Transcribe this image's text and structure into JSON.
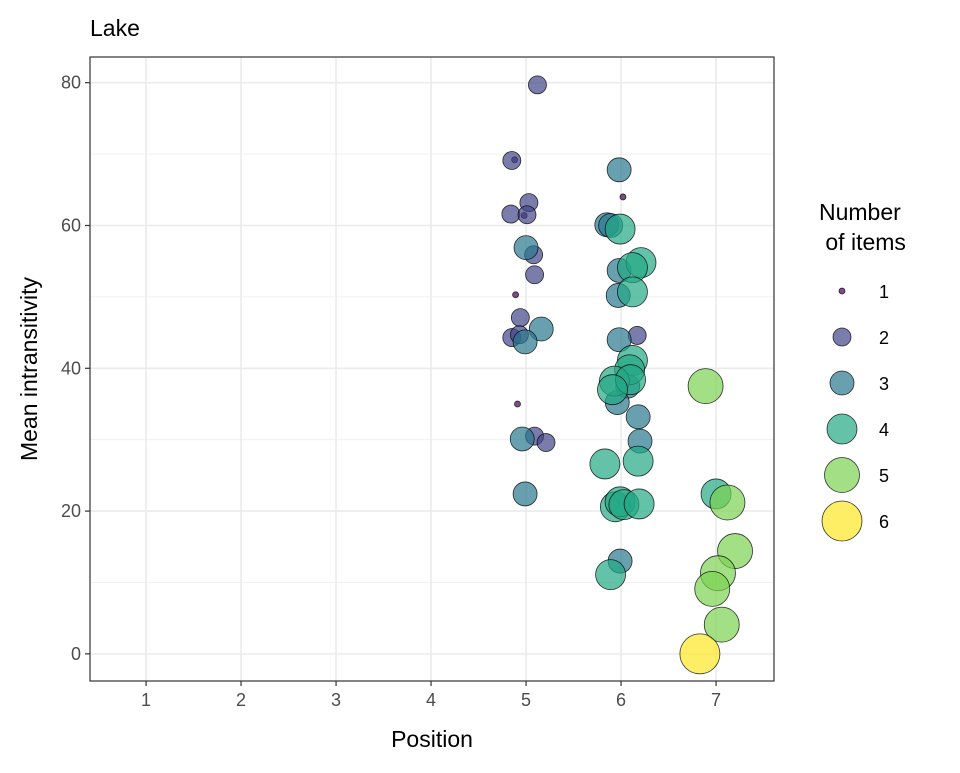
{
  "chart_data": {
    "type": "scatter",
    "title": "Lake",
    "xlabel": "Position",
    "ylabel": "Mean intransitivity",
    "xlim": [
      0.41,
      7.61
    ],
    "ylim": [
      -3.8,
      83.6
    ],
    "xticks": [
      1,
      2,
      3,
      4,
      5,
      6,
      7
    ],
    "yticks": [
      0,
      20,
      40,
      60,
      80
    ],
    "grid": true,
    "legend": {
      "title_line1": "Number",
      "title_line2": " of items",
      "placement": "right",
      "entries": [
        {
          "label": "1",
          "n": 1,
          "color": "#440154"
        },
        {
          "label": "2",
          "n": 2,
          "color": "#414487"
        },
        {
          "label": "3",
          "n": 3,
          "color": "#2A788E"
        },
        {
          "label": "4",
          "n": 4,
          "color": "#22A884"
        },
        {
          "label": "5",
          "n": 5,
          "color": "#7AD151"
        },
        {
          "label": "6",
          "n": 6,
          "color": "#FDE725"
        }
      ]
    },
    "points": [
      {
        "x": 5.12,
        "y": 79.7,
        "n": 2
      },
      {
        "x": 4.85,
        "y": 69.1,
        "n": 2
      },
      {
        "x": 4.88,
        "y": 69.2,
        "n": 1
      },
      {
        "x": 5.03,
        "y": 63.2,
        "n": 2
      },
      {
        "x": 4.84,
        "y": 61.6,
        "n": 2
      },
      {
        "x": 5.01,
        "y": 61.5,
        "n": 2
      },
      {
        "x": 4.98,
        "y": 61.4,
        "n": 1
      },
      {
        "x": 5.0,
        "y": 56.9,
        "n": 3
      },
      {
        "x": 5.08,
        "y": 55.9,
        "n": 2
      },
      {
        "x": 5.09,
        "y": 53.1,
        "n": 2
      },
      {
        "x": 4.89,
        "y": 50.3,
        "n": 1
      },
      {
        "x": 4.94,
        "y": 47.1,
        "n": 2
      },
      {
        "x": 4.85,
        "y": 44.3,
        "n": 2
      },
      {
        "x": 4.93,
        "y": 44.7,
        "n": 2
      },
      {
        "x": 5.16,
        "y": 45.5,
        "n": 3
      },
      {
        "x": 4.99,
        "y": 43.7,
        "n": 3
      },
      {
        "x": 4.91,
        "y": 35.0,
        "n": 1
      },
      {
        "x": 4.96,
        "y": 30.1,
        "n": 3
      },
      {
        "x": 5.09,
        "y": 30.5,
        "n": 2
      },
      {
        "x": 5.21,
        "y": 29.6,
        "n": 2
      },
      {
        "x": 4.99,
        "y": 22.4,
        "n": 3
      },
      {
        "x": 5.98,
        "y": 67.8,
        "n": 3
      },
      {
        "x": 6.02,
        "y": 64.0,
        "n": 1
      },
      {
        "x": 5.85,
        "y": 60.1,
        "n": 3
      },
      {
        "x": 5.89,
        "y": 60.0,
        "n": 3
      },
      {
        "x": 5.99,
        "y": 59.5,
        "n": 4
      },
      {
        "x": 6.21,
        "y": 54.8,
        "n": 4
      },
      {
        "x": 6.12,
        "y": 54.1,
        "n": 4
      },
      {
        "x": 5.98,
        "y": 53.7,
        "n": 3
      },
      {
        "x": 5.97,
        "y": 50.2,
        "n": 3
      },
      {
        "x": 6.12,
        "y": 50.7,
        "n": 4
      },
      {
        "x": 6.17,
        "y": 44.6,
        "n": 2
      },
      {
        "x": 5.98,
        "y": 44.0,
        "n": 3
      },
      {
        "x": 6.12,
        "y": 41.1,
        "n": 4
      },
      {
        "x": 6.09,
        "y": 39.8,
        "n": 4
      },
      {
        "x": 5.93,
        "y": 38.2,
        "n": 4
      },
      {
        "x": 6.1,
        "y": 38.4,
        "n": 4
      },
      {
        "x": 6.07,
        "y": 37.5,
        "n": 3
      },
      {
        "x": 5.91,
        "y": 37.0,
        "n": 4
      },
      {
        "x": 5.96,
        "y": 35.2,
        "n": 3
      },
      {
        "x": 6.18,
        "y": 33.2,
        "n": 3
      },
      {
        "x": 6.2,
        "y": 29.8,
        "n": 3
      },
      {
        "x": 5.83,
        "y": 26.6,
        "n": 4
      },
      {
        "x": 6.18,
        "y": 27.0,
        "n": 4
      },
      {
        "x": 5.94,
        "y": 20.6,
        "n": 4
      },
      {
        "x": 5.99,
        "y": 21.3,
        "n": 4
      },
      {
        "x": 6.03,
        "y": 20.9,
        "n": 4
      },
      {
        "x": 6.19,
        "y": 21.0,
        "n": 4
      },
      {
        "x": 5.99,
        "y": 13.0,
        "n": 3
      },
      {
        "x": 5.89,
        "y": 11.1,
        "n": 4
      },
      {
        "x": 6.89,
        "y": 37.5,
        "n": 5
      },
      {
        "x": 7.0,
        "y": 22.4,
        "n": 4
      },
      {
        "x": 7.12,
        "y": 21.2,
        "n": 5
      },
      {
        "x": 7.2,
        "y": 14.4,
        "n": 5
      },
      {
        "x": 7.02,
        "y": 11.3,
        "n": 5
      },
      {
        "x": 6.96,
        "y": 9.1,
        "n": 5
      },
      {
        "x": 7.06,
        "y": 4.1,
        "n": 5
      },
      {
        "x": 6.83,
        "y": 0.0,
        "n": 6
      }
    ]
  }
}
